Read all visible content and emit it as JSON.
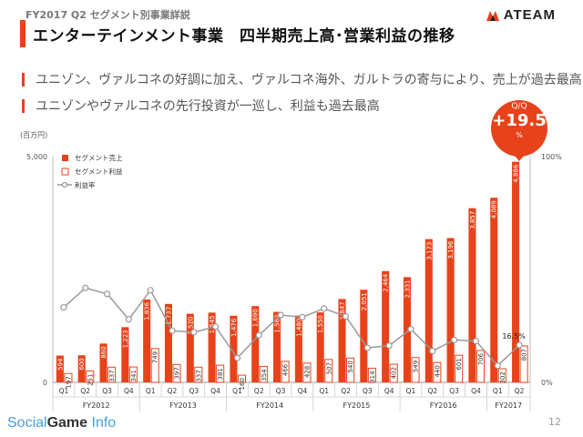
{
  "header": {
    "subtitle": "FY2017 Q2 セグメント別事業詳説",
    "title": "エンターテインメント事業　四半期売上高･営業利益の推移"
  },
  "logo": {
    "text": "ATEAM"
  },
  "bullets": [
    "ユニゾン、ヴァルコネの好調に加え、ヴァルコネ海外、ガルトラの寄与により、売上が過去最高",
    "ユニゾンやヴァルコネの先行投資が一巡し、利益も過去最高"
  ],
  "badge": {
    "label": "Q/Q",
    "value": "+19.5",
    "unit": "%"
  },
  "footer": {
    "brand_a": "Social",
    "brand_b": "Game",
    "brand_c": "Info",
    "page": "12"
  },
  "colors": {
    "accent": "#e8421a",
    "line": "#999999"
  },
  "chart_data": {
    "type": "bar",
    "unit_label": "(百万円)",
    "y_left_ticks": [
      "5,000",
      "0"
    ],
    "y_right_ticks": [
      "100%",
      "0%"
    ],
    "ylim": [
      0,
      5000
    ],
    "y2lim": [
      0,
      100
    ],
    "legend": [
      "セグメント売上",
      "セグメント利益",
      "利益率"
    ],
    "legend_position": "top-left",
    "quarters": [
      "Q1",
      "Q2",
      "Q3",
      "Q4",
      "Q1",
      "Q2",
      "Q3",
      "Q4",
      "Q1",
      "Q2",
      "Q3",
      "Q4",
      "Q1",
      "Q2",
      "Q3",
      "Q4",
      "Q1",
      "Q2",
      "Q3",
      "Q4",
      "Q1",
      "Q2"
    ],
    "years": [
      {
        "label": "FY2012",
        "count": 4
      },
      {
        "label": "FY2013",
        "count": 4
      },
      {
        "label": "FY2014",
        "count": 4
      },
      {
        "label": "FY2015",
        "count": 4
      },
      {
        "label": "FY2016",
        "count": 4
      },
      {
        "label": "FY2017",
        "count": 2
      }
    ],
    "series": [
      {
        "name": "セグメント売上",
        "values": [
          594,
          600,
          860,
          1223,
          1836,
          1737,
          1520,
          1545,
          1476,
          1690,
          1562,
          1480,
          1550,
          1847,
          2051,
          2464,
          2331,
          3173,
          3196,
          3857,
          4089,
          4886
        ],
        "labels": [
          "594",
          "600",
          "860",
          "1,223",
          "1,836",
          "1,737",
          "1,520",
          "1,545",
          "1,476",
          "1,690",
          "1,562",
          "1,480",
          "1,550",
          "1,847",
          "2,051",
          "2,464",
          "2,331",
          "3,173",
          "3,196",
          "3,857",
          "4,089",
          "4,886"
        ]
      },
      {
        "name": "セグメント利益",
        "values": [
          197,
          251,
          337,
          341,
          749,
          397,
          337,
          381,
          160,
          354,
          466,
          428,
          507,
          540,
          314,
          402,
          549,
          440,
          601,
          706,
          302,
          807
        ],
        "labels": [
          "197",
          "251",
          "337",
          "341",
          "749",
          "397",
          "337",
          "381",
          "160",
          "354",
          "466",
          "428",
          "507",
          "540",
          "314",
          "402",
          "549",
          "440",
          "601",
          "706",
          "302",
          "807"
        ]
      },
      {
        "name": "利益率",
        "values": [
          33.2,
          41.8,
          39.2,
          27.9,
          40.8,
          22.9,
          22.2,
          24.7,
          10.8,
          20.9,
          29.8,
          28.9,
          32.7,
          29.2,
          15.3,
          16.3,
          23.6,
          13.9,
          18.8,
          18.3,
          7.4,
          16.5
        ]
      }
    ],
    "annotation": "16.5%"
  }
}
